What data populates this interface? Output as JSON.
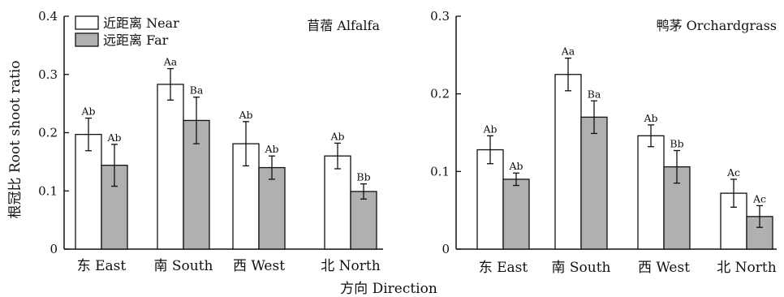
{
  "figure": {
    "xlabel": "方向 Direction",
    "ylabel": "根冠比 Root shoot ratio"
  },
  "legend": [
    {
      "label": "近距离 Near",
      "color": "#ffffff"
    },
    {
      "label": "远距离 Far",
      "color": "#b0b0b0"
    }
  ],
  "colors": {
    "near_fill": "#ffffff",
    "far_fill": "#b0b0b0",
    "stroke": "#111111"
  },
  "chart_data": [
    {
      "type": "bar",
      "title": "苜蓿 Alfalfa",
      "ylabel": "根冠比 Root shoot ratio",
      "xlabel": "方向 Direction",
      "categories": [
        "东 East",
        "南 South",
        "西 West",
        "北 North"
      ],
      "ylim": [
        0,
        0.4
      ],
      "yticks": [
        0,
        0.1,
        0.2,
        0.3,
        0.4
      ],
      "ytick_labels": [
        "0",
        "0.1",
        "0.2",
        "0.3",
        "0.4"
      ],
      "legend_position": "top-left",
      "series": [
        {
          "name": "近距离 Near",
          "values": [
            0.197,
            0.283,
            0.181,
            0.16
          ],
          "errors": [
            0.028,
            0.027,
            0.038,
            0.022
          ],
          "labels": [
            "Ab",
            "Aa",
            "Ab",
            "Ab"
          ]
        },
        {
          "name": "远距离 Far",
          "values": [
            0.144,
            0.221,
            0.14,
            0.099
          ],
          "errors": [
            0.036,
            0.04,
            0.02,
            0.013
          ],
          "labels": [
            "Ab",
            "Ba",
            "Ab",
            "Bb"
          ]
        }
      ]
    },
    {
      "type": "bar",
      "title": "鸭茅 Orchardgrass",
      "xlabel": "方向 Direction",
      "categories": [
        "东 East",
        "南 South",
        "西 West",
        "北 North"
      ],
      "ylim": [
        0,
        0.3
      ],
      "yticks": [
        0,
        0.1,
        0.2,
        0.3
      ],
      "ytick_labels": [
        "0",
        "0.1",
        "0.2",
        "0.3"
      ],
      "series": [
        {
          "name": "近距离 Near",
          "values": [
            0.128,
            0.225,
            0.146,
            0.072
          ],
          "errors": [
            0.018,
            0.021,
            0.014,
            0.018
          ],
          "labels": [
            "Ab",
            "Aa",
            "Ab",
            "Ac"
          ]
        },
        {
          "name": "远距离 Far",
          "values": [
            0.09,
            0.17,
            0.106,
            0.042
          ],
          "errors": [
            0.008,
            0.021,
            0.021,
            0.014
          ],
          "labels": [
            "Ab",
            "Ba",
            "Bb",
            "Ac"
          ]
        }
      ]
    }
  ]
}
